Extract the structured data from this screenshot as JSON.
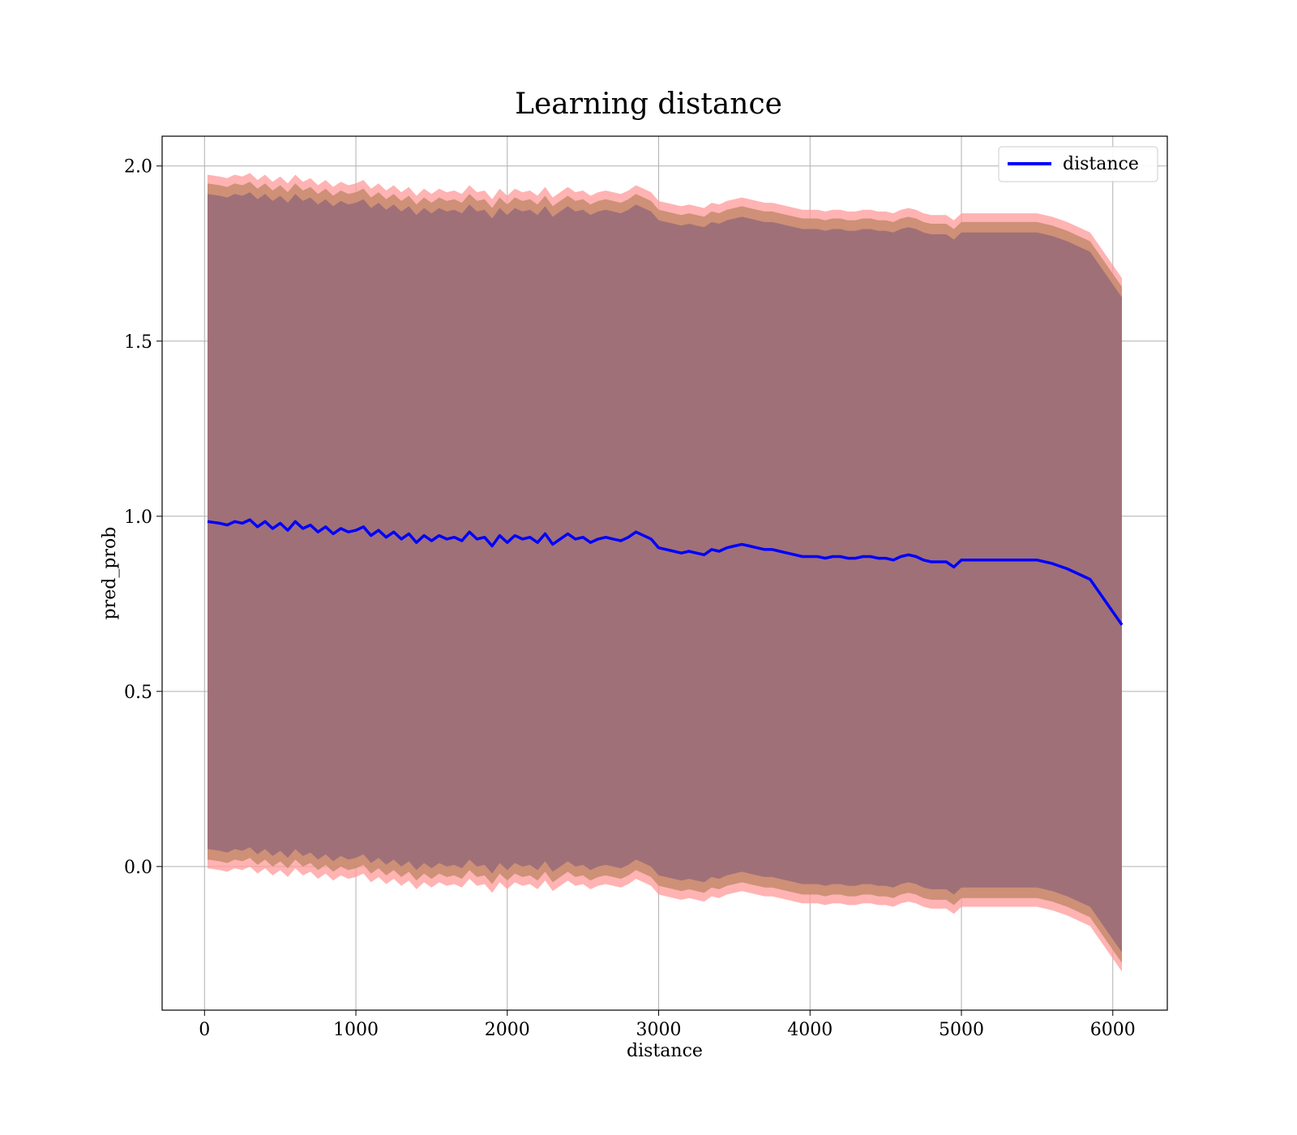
{
  "chart_data": {
    "type": "line",
    "title": "Learning distance",
    "xlabel": "distance",
    "ylabel": "pred_prob",
    "xlim": [
      -280,
      6360
    ],
    "ylim": [
      -0.41,
      2.085
    ],
    "x_ticks": [
      0,
      1000,
      2000,
      3000,
      4000,
      5000,
      6000
    ],
    "y_ticks": [
      0.0,
      0.5,
      1.0,
      1.5,
      2.0
    ],
    "x_tick_labels": [
      "0",
      "1000",
      "2000",
      "3000",
      "4000",
      "5000",
      "6000"
    ],
    "y_tick_labels": [
      "0.0",
      "0.5",
      "1.0",
      "1.5",
      "2.0"
    ],
    "grid": true,
    "legend": {
      "placement": "top-right",
      "entries": [
        "distance"
      ]
    },
    "colors": {
      "line": "#0000ff",
      "band_outer": "#ff9a9a",
      "band_middle": "#c98c70",
      "band_inner": "#a07078"
    },
    "series": [
      {
        "name": "distance",
        "x": [
          20,
          100,
          150,
          200,
          250,
          300,
          350,
          400,
          450,
          500,
          550,
          600,
          650,
          700,
          750,
          800,
          850,
          900,
          950,
          1000,
          1050,
          1100,
          1150,
          1200,
          1250,
          1300,
          1350,
          1400,
          1450,
          1500,
          1550,
          1600,
          1650,
          1700,
          1750,
          1800,
          1850,
          1900,
          1950,
          2000,
          2050,
          2100,
          2150,
          2200,
          2250,
          2300,
          2350,
          2400,
          2450,
          2500,
          2550,
          2600,
          2650,
          2700,
          2750,
          2800,
          2850,
          2900,
          2950,
          3000,
          3050,
          3100,
          3150,
          3200,
          3250,
          3300,
          3350,
          3400,
          3450,
          3500,
          3550,
          3600,
          3650,
          3700,
          3750,
          3800,
          3850,
          3900,
          3950,
          4000,
          4050,
          4100,
          4150,
          4200,
          4250,
          4300,
          4350,
          4400,
          4450,
          4500,
          4550,
          4600,
          4650,
          4700,
          4750,
          4800,
          4850,
          4900,
          4950,
          5000,
          5050,
          5100,
          5200,
          5300,
          5400,
          5500,
          5600,
          5700,
          5850,
          6060
        ],
        "y": [
          0.985,
          0.98,
          0.975,
          0.985,
          0.98,
          0.99,
          0.97,
          0.985,
          0.965,
          0.98,
          0.96,
          0.985,
          0.965,
          0.975,
          0.955,
          0.97,
          0.95,
          0.965,
          0.955,
          0.96,
          0.97,
          0.945,
          0.96,
          0.94,
          0.955,
          0.935,
          0.95,
          0.925,
          0.945,
          0.93,
          0.945,
          0.935,
          0.94,
          0.93,
          0.955,
          0.935,
          0.94,
          0.915,
          0.945,
          0.925,
          0.945,
          0.935,
          0.94,
          0.925,
          0.95,
          0.92,
          0.935,
          0.95,
          0.935,
          0.94,
          0.925,
          0.935,
          0.94,
          0.935,
          0.93,
          0.94,
          0.955,
          0.945,
          0.935,
          0.91,
          0.905,
          0.9,
          0.895,
          0.9,
          0.895,
          0.89,
          0.905,
          0.9,
          0.91,
          0.915,
          0.92,
          0.915,
          0.91,
          0.905,
          0.905,
          0.9,
          0.895,
          0.89,
          0.885,
          0.885,
          0.885,
          0.88,
          0.885,
          0.885,
          0.88,
          0.88,
          0.885,
          0.885,
          0.88,
          0.88,
          0.875,
          0.885,
          0.89,
          0.885,
          0.875,
          0.87,
          0.87,
          0.87,
          0.855,
          0.875,
          0.875,
          0.875,
          0.875,
          0.875,
          0.875,
          0.875,
          0.865,
          0.85,
          0.82,
          0.69
        ]
      }
    ],
    "bands": [
      {
        "offset": 0.99
      },
      {
        "offset": 0.965
      },
      {
        "offset": 0.935
      }
    ]
  }
}
